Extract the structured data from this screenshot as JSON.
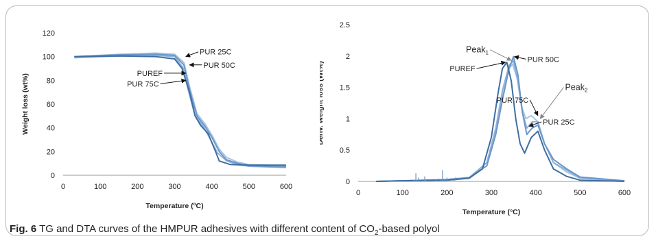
{
  "figure": {
    "caption_label": "Fig. 6",
    "caption_pre": "TG and DTA curves of the HMPUR adhesives with different content of CO",
    "caption_sub": "2",
    "caption_post": "-based polyol"
  },
  "colors": {
    "PUREF": "#3d6ea3",
    "PUR 25C": "#a7c5e4",
    "PUR 50C": "#6b96c8",
    "PUR 75C": "#8fb2da",
    "axis": "#999999",
    "text": "#222222"
  },
  "chart_data": [
    {
      "type": "line",
      "xlabel": "Temperature (ºC)",
      "ylabel": "Weight loss (wt%)",
      "xlim": [
        0,
        600
      ],
      "ylim": [
        0,
        120
      ],
      "xticks": [
        0,
        100,
        200,
        300,
        400,
        500,
        600
      ],
      "yticks": [
        0,
        20,
        40,
        60,
        80,
        100,
        120
      ],
      "grid": false,
      "series": [
        {
          "name": "PUREF",
          "x": [
            30,
            150,
            250,
            300,
            320,
            340,
            355,
            370,
            390,
            410,
            420,
            450,
            500,
            600
          ],
          "y": [
            100,
            100.5,
            100,
            98,
            90,
            70,
            50,
            42,
            35,
            20,
            12,
            9,
            8.5,
            8.5
          ]
        },
        {
          "name": "PUR 25C",
          "x": [
            30,
            150,
            250,
            300,
            325,
            340,
            360,
            380,
            400,
            420,
            440,
            470,
            500,
            600
          ],
          "y": [
            100,
            102,
            103,
            102,
            95,
            75,
            52,
            44,
            34,
            22,
            15,
            11,
            9,
            8
          ]
        },
        {
          "name": "PUR 50C",
          "x": [
            30,
            150,
            250,
            300,
            325,
            340,
            360,
            380,
            400,
            420,
            440,
            470,
            500,
            600
          ],
          "y": [
            100,
            101.5,
            102,
            101,
            93,
            72,
            50,
            42,
            32,
            20,
            13,
            10,
            8,
            7
          ]
        },
        {
          "name": "PUR 75C",
          "x": [
            30,
            150,
            250,
            300,
            322,
            338,
            355,
            375,
            395,
            415,
            440,
            470,
            500,
            600
          ],
          "y": [
            99,
            100.5,
            101,
            100,
            91,
            70,
            50,
            42,
            31,
            19,
            12,
            9,
            7.5,
            6.5
          ]
        }
      ],
      "annotations": [
        {
          "text": "PUR 25C",
          "x": 330,
          "y": 100,
          "tx": 360,
          "ty": 104
        },
        {
          "text": "PUR 50C",
          "x": 340,
          "y": 93,
          "tx": 370,
          "ty": 93
        },
        {
          "text": "PUREF",
          "x": 330,
          "y": 86,
          "tx": 275,
          "ty": 86
        },
        {
          "text": "PUR 75C",
          "x": 330,
          "y": 80,
          "tx": 265,
          "ty": 77
        }
      ]
    },
    {
      "type": "line",
      "xlabel": "Temperature (°C)",
      "ylabel": "Deriv. Weight loss (Wt%)",
      "xlim": [
        0,
        600
      ],
      "ylim": [
        0,
        2.5
      ],
      "xticks": [
        0,
        100,
        200,
        300,
        400,
        500,
        600
      ],
      "yticks": [
        0,
        0.5,
        1,
        1.5,
        2,
        2.5
      ],
      "ytick_labels": [
        "0",
        "0.5",
        "1",
        "1.5",
        "2",
        "2.5"
      ],
      "grid": false,
      "series": [
        {
          "name": "PUREF",
          "x": [
            40,
            100,
            200,
            250,
            280,
            300,
            315,
            325,
            335,
            345,
            355,
            365,
            375,
            390,
            405,
            420,
            440,
            470,
            500,
            600
          ],
          "y": [
            0,
            0.01,
            0.02,
            0.05,
            0.2,
            0.7,
            1.4,
            1.8,
            1.9,
            1.6,
            1.0,
            0.6,
            0.45,
            0.7,
            0.8,
            0.5,
            0.2,
            0.08,
            0.02,
            0.0
          ]
        },
        {
          "name": "PUR 25C",
          "x": [
            40,
            100,
            200,
            250,
            290,
            310,
            325,
            340,
            348,
            358,
            368,
            378,
            390,
            405,
            420,
            440,
            470,
            500,
            600
          ],
          "y": [
            0,
            0.01,
            0.03,
            0.06,
            0.3,
            0.8,
            1.35,
            1.8,
            1.87,
            1.65,
            1.2,
            1.0,
            1.05,
            0.95,
            0.6,
            0.3,
            0.15,
            0.05,
            0.01
          ]
        },
        {
          "name": "PUR 50C",
          "x": [
            40,
            100,
            200,
            250,
            290,
            310,
            325,
            340,
            350,
            360,
            370,
            380,
            392,
            405,
            420,
            440,
            470,
            500,
            600
          ],
          "y": [
            0,
            0.01,
            0.03,
            0.06,
            0.25,
            0.75,
            1.3,
            1.8,
            1.99,
            1.7,
            1.1,
            0.75,
            0.85,
            0.9,
            0.6,
            0.35,
            0.2,
            0.07,
            0.01
          ]
        },
        {
          "name": "PUR 75C",
          "x": [
            40,
            100,
            200,
            250,
            290,
            310,
            325,
            340,
            350,
            360,
            370,
            380,
            392,
            405,
            420,
            440,
            470,
            500,
            600
          ],
          "y": [
            0,
            0.01,
            0.03,
            0.06,
            0.3,
            0.85,
            1.45,
            1.85,
            1.92,
            1.6,
            1.1,
            0.85,
            0.95,
            0.95,
            0.6,
            0.3,
            0.18,
            0.05,
            0.01
          ]
        },
        {
          "name": "noise",
          "x": [
            125,
            130,
            132,
            136,
            145,
            150,
            152,
            175,
            185,
            190,
            195,
            200,
            215,
            220
          ],
          "y": [
            0.02,
            0.13,
            0.02,
            0.06,
            0.02,
            0.08,
            0.02,
            0.03,
            0.02,
            0.18,
            0.03,
            0.06,
            0.02,
            0.07
          ]
        }
      ],
      "annotations": [
        {
          "text": "Peak",
          "sub": "1",
          "x": 345,
          "y": 1.93,
          "tx": 300,
          "ty": 2.1
        },
        {
          "text": "PUR 50C",
          "x": 352,
          "y": 1.99,
          "tx": 375,
          "ty": 1.95
        },
        {
          "text": "PUREF",
          "x": 332,
          "y": 1.9,
          "tx": 270,
          "ty": 1.8
        },
        {
          "text": "PUR 75C",
          "x": 405,
          "y": 1.05,
          "tx": 390,
          "ty": 1.3
        },
        {
          "text": "Peak",
          "sub": "2",
          "x": 410,
          "y": 1.0,
          "tx": 460,
          "ty": 1.5
        },
        {
          "text": "PUR 25C",
          "x": 385,
          "y": 0.88,
          "tx": 410,
          "ty": 0.95
        }
      ]
    }
  ]
}
